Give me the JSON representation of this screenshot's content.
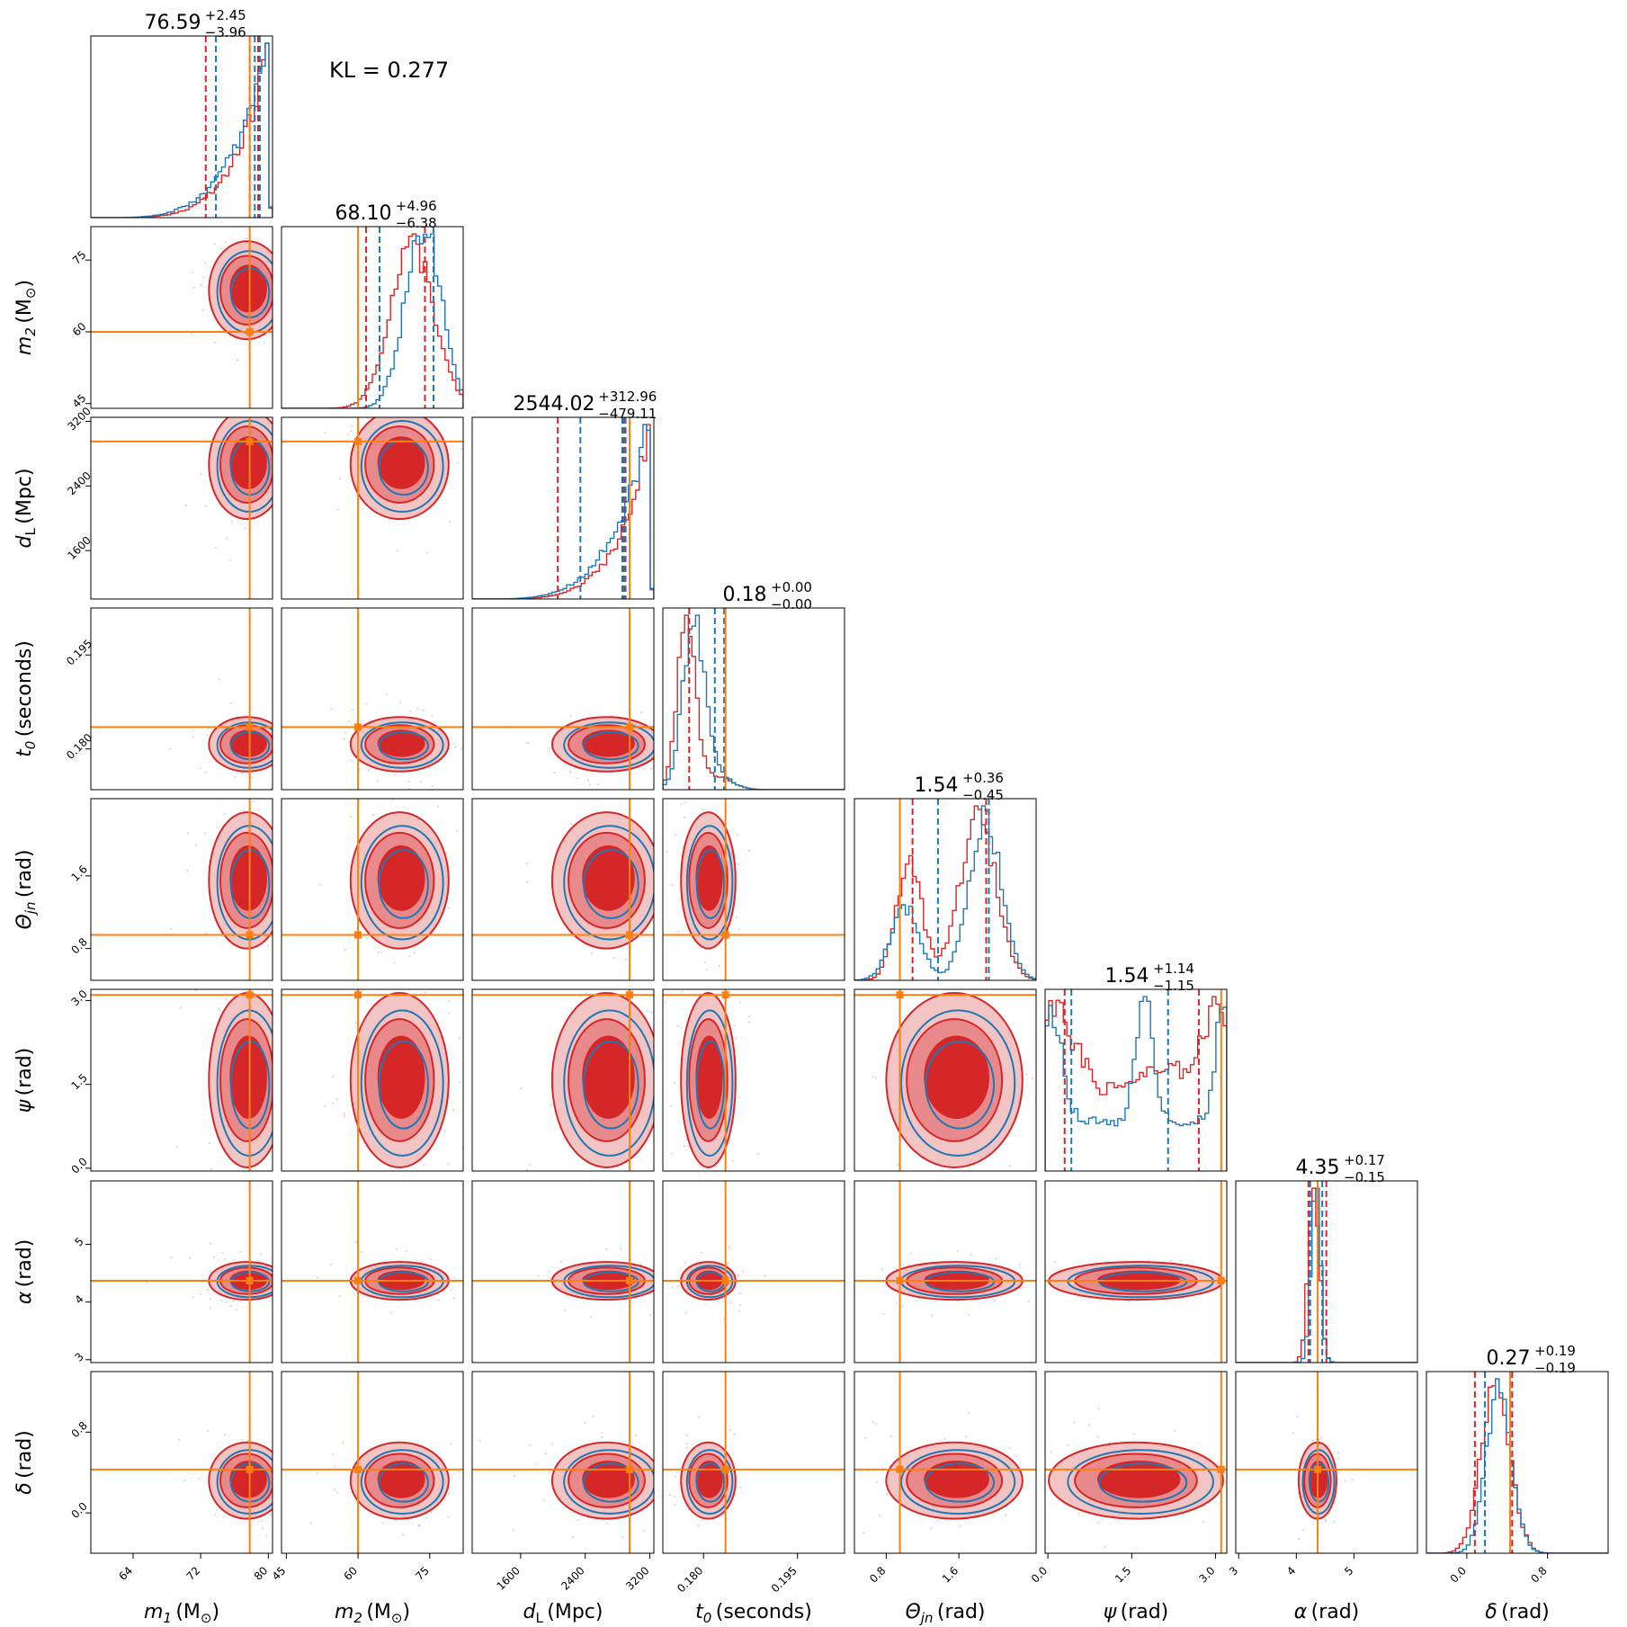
{
  "chart_data": {
    "type": "scatter",
    "subtype": "corner-plot",
    "annotation": "KL = 0.277",
    "colors": {
      "series_a": "#d62728",
      "series_b": "#1f77b4",
      "truth": "#ff7f0e"
    },
    "parameters": [
      {
        "key": "m1",
        "symbol": "m",
        "sub": "1",
        "unit": "(M",
        "unit_sub": "⊙",
        "unit_end": ")",
        "range": [
          59,
          80.5
        ],
        "ticks": [
          64,
          72,
          80
        ],
        "tick_labels": [
          "64",
          "72",
          "80"
        ],
        "truth": 77.8,
        "median": 76.59,
        "plus": "2.45",
        "minus": "3.96",
        "median_label": "76.59",
        "quantiles_a": [
          72.6,
          77.8,
          78.8
        ],
        "quantiles_b": [
          73.8,
          78.4,
          79.0
        ],
        "hist": "right"
      },
      {
        "key": "m2",
        "symbol": "m",
        "sub": "2",
        "unit": "(M",
        "unit_sub": "⊙",
        "unit_end": ")",
        "range": [
          44,
          82
        ],
        "ticks": [
          45,
          60,
          75
        ],
        "tick_labels": [
          "45",
          "60",
          "75"
        ],
        "truth": 60,
        "median": 68.1,
        "plus": "4.96",
        "minus": "6.38",
        "median_label": "68.10",
        "quantiles_a": [
          61.7,
          74.0
        ],
        "quantiles_b": [
          64.5,
          75.8
        ],
        "hist": "rightmid"
      },
      {
        "key": "dL",
        "symbol": "d",
        "sub": "L",
        "unit": "(Mpc)",
        "unit_sub": "",
        "unit_end": "",
        "range": [
          1000,
          3250
        ],
        "ticks": [
          1600,
          2400,
          3200
        ],
        "tick_labels": [
          "1600",
          "2400",
          "3200"
        ],
        "truth": 2950,
        "median": 2544.02,
        "plus": "312.96",
        "minus": "479.11",
        "median_label": "2544.02",
        "quantiles_a": [
          2060,
          2860,
          2880
        ],
        "quantiles_b": [
          2340,
          2870,
          2900
        ],
        "hist": "right"
      },
      {
        "key": "t0",
        "symbol": "t",
        "sub": "0",
        "unit": "(seconds)",
        "unit_sub": "",
        "unit_end": "",
        "range": [
          0.1735,
          0.2025
        ],
        "ticks": [
          0.18,
          0.195
        ],
        "tick_labels": [
          "0.180",
          "0.195"
        ],
        "truth": 0.1835,
        "median": 0.18,
        "plus": "0.00",
        "minus": "0.00",
        "median_label": "0.18",
        "quantiles_a": [
          0.1777,
          0.1833
        ],
        "quantiles_b": [
          0.1818,
          0.1833
        ],
        "hist": "left"
      },
      {
        "key": "theta",
        "symbol": "Θ",
        "sub": "jn",
        "unit": "(rad)",
        "unit_sub": "",
        "unit_end": "",
        "range": [
          0.45,
          2.45
        ],
        "ticks": [
          0.8,
          1.6
        ],
        "tick_labels": [
          "0.8",
          "1.6"
        ],
        "truth": 0.95,
        "median": 1.54,
        "plus": "0.36",
        "minus": "0.45",
        "median_label": "1.54",
        "quantiles_a": [
          1.09,
          1.9
        ],
        "quantiles_b": [
          1.37,
          1.93
        ],
        "hist": "bimodal"
      },
      {
        "key": "psi",
        "symbol": "ψ",
        "sub": "",
        "unit": "(rad)",
        "unit_sub": "",
        "unit_end": "",
        "range": [
          -0.05,
          3.2
        ],
        "ticks": [
          0.0,
          1.5,
          3.0
        ],
        "tick_labels": [
          "0.0",
          "1.5",
          "3.0"
        ],
        "truth": 3.1,
        "median": 1.54,
        "plus": "1.14",
        "minus": "1.15",
        "median_label": "1.54",
        "quantiles_a": [
          0.3,
          2.7
        ],
        "quantiles_b": [
          0.42,
          2.15
        ],
        "hist": "flat"
      },
      {
        "key": "alpha",
        "symbol": "α",
        "sub": "",
        "unit": "(rad)",
        "unit_sub": "",
        "unit_end": "",
        "range": [
          2.95,
          6.1
        ],
        "ticks": [
          3,
          4,
          5
        ],
        "tick_labels": [
          "3",
          "4",
          "5"
        ],
        "truth": 4.37,
        "median": 4.35,
        "plus": "0.17",
        "minus": "0.15",
        "median_label": "4.35",
        "quantiles_a": [
          4.21,
          4.52
        ],
        "quantiles_b": [
          4.24,
          4.45
        ],
        "hist": "narrow"
      },
      {
        "key": "delta",
        "symbol": "δ",
        "sub": "",
        "unit": "(rad)",
        "unit_sub": "",
        "unit_end": "",
        "range": [
          -0.4,
          1.4
        ],
        "ticks": [
          0.0,
          0.8
        ],
        "tick_labels": [
          "0.0",
          "0.8"
        ],
        "truth": 0.43,
        "median": 0.27,
        "plus": "0.19",
        "minus": "0.19",
        "median_label": "0.27",
        "quantiles_a": [
          0.08,
          0.45
        ],
        "quantiles_b": [
          0.18,
          0.43
        ],
        "hist": "center"
      }
    ]
  }
}
